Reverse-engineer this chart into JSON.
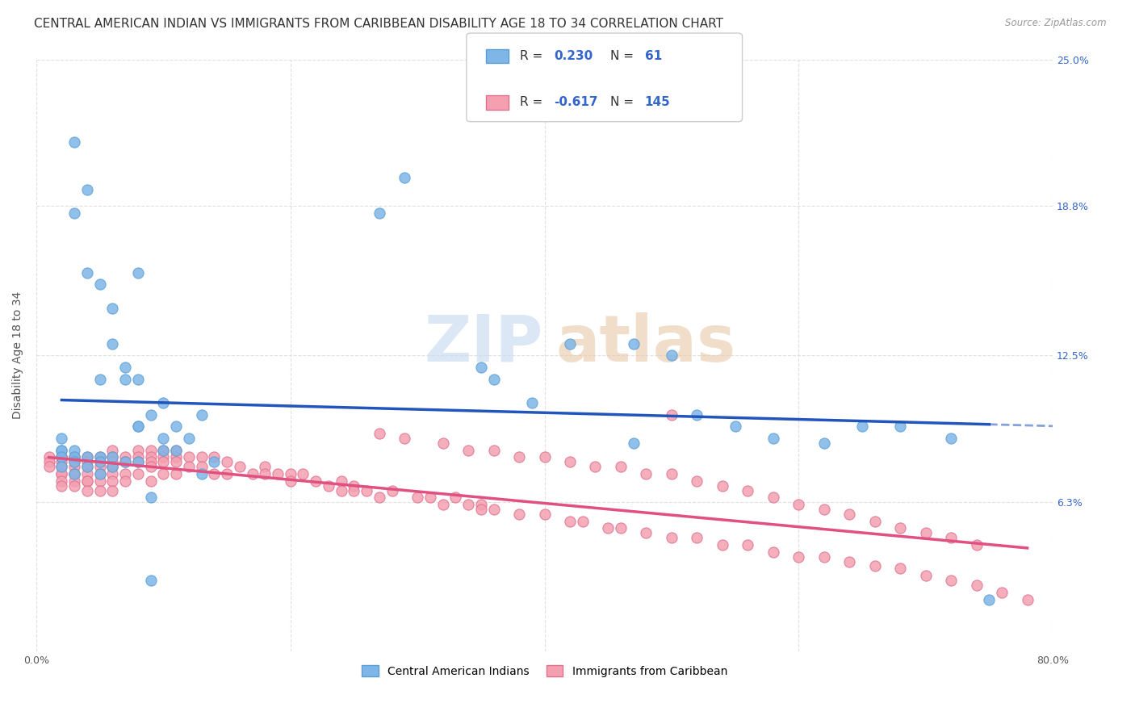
{
  "title": "CENTRAL AMERICAN INDIAN VS IMMIGRANTS FROM CARIBBEAN DISABILITY AGE 18 TO 34 CORRELATION CHART",
  "source": "Source: ZipAtlas.com",
  "ylabel": "Disability Age 18 to 34",
  "xlim": [
    0.0,
    0.8
  ],
  "ylim": [
    0.0,
    0.25
  ],
  "ytick_positions": [
    0.063,
    0.125,
    0.188,
    0.25
  ],
  "ytick_labels": [
    "6.3%",
    "12.5%",
    "18.8%",
    "25.0%"
  ],
  "series1_color": "#7EB6E8",
  "series1_edge": "#5A9FD4",
  "series2_color": "#F4A0B0",
  "series2_edge": "#E07090",
  "line1_color": "#2255BB",
  "line2_color": "#E05080",
  "legend_color": "#3366CC",
  "background_color": "#FFFFFF",
  "grid_color": "#DDDDDD",
  "title_fontsize": 11,
  "axis_label_fontsize": 10,
  "tick_fontsize": 9,
  "series1_x": [
    0.02,
    0.05,
    0.08,
    0.09,
    0.1,
    0.11,
    0.13,
    0.14,
    0.03,
    0.03,
    0.04,
    0.04,
    0.05,
    0.06,
    0.06,
    0.07,
    0.07,
    0.08,
    0.08,
    0.08,
    0.09,
    0.1,
    0.1,
    0.11,
    0.12,
    0.13,
    0.02,
    0.02,
    0.02,
    0.02,
    0.03,
    0.03,
    0.03,
    0.03,
    0.04,
    0.04,
    0.05,
    0.05,
    0.05,
    0.06,
    0.06,
    0.07,
    0.08,
    0.09,
    0.27,
    0.29,
    0.35,
    0.36,
    0.39,
    0.42,
    0.47,
    0.47,
    0.5,
    0.52,
    0.55,
    0.58,
    0.62,
    0.65,
    0.68,
    0.72,
    0.75
  ],
  "series1_y": [
    0.085,
    0.115,
    0.095,
    0.065,
    0.105,
    0.095,
    0.075,
    0.08,
    0.215,
    0.185,
    0.195,
    0.16,
    0.155,
    0.145,
    0.13,
    0.12,
    0.115,
    0.16,
    0.115,
    0.095,
    0.1,
    0.09,
    0.085,
    0.085,
    0.09,
    0.1,
    0.09,
    0.085,
    0.082,
    0.078,
    0.085,
    0.082,
    0.08,
    0.075,
    0.082,
    0.078,
    0.082,
    0.08,
    0.075,
    0.082,
    0.078,
    0.08,
    0.08,
    0.03,
    0.185,
    0.2,
    0.12,
    0.115,
    0.105,
    0.13,
    0.13,
    0.088,
    0.125,
    0.1,
    0.095,
    0.09,
    0.088,
    0.095,
    0.095,
    0.09,
    0.022
  ],
  "series2_x": [
    0.01,
    0.01,
    0.01,
    0.02,
    0.02,
    0.02,
    0.02,
    0.02,
    0.02,
    0.02,
    0.02,
    0.03,
    0.03,
    0.03,
    0.03,
    0.03,
    0.03,
    0.03,
    0.03,
    0.04,
    0.04,
    0.04,
    0.04,
    0.04,
    0.04,
    0.04,
    0.05,
    0.05,
    0.05,
    0.05,
    0.05,
    0.05,
    0.06,
    0.06,
    0.06,
    0.06,
    0.06,
    0.06,
    0.06,
    0.06,
    0.07,
    0.07,
    0.07,
    0.07,
    0.08,
    0.08,
    0.08,
    0.08,
    0.09,
    0.09,
    0.09,
    0.09,
    0.09,
    0.1,
    0.1,
    0.1,
    0.1,
    0.11,
    0.11,
    0.11,
    0.11,
    0.12,
    0.12,
    0.13,
    0.13,
    0.14,
    0.14,
    0.15,
    0.15,
    0.16,
    0.17,
    0.18,
    0.18,
    0.19,
    0.2,
    0.2,
    0.21,
    0.22,
    0.23,
    0.24,
    0.24,
    0.25,
    0.25,
    0.26,
    0.27,
    0.28,
    0.3,
    0.31,
    0.32,
    0.33,
    0.34,
    0.35,
    0.35,
    0.36,
    0.38,
    0.4,
    0.42,
    0.43,
    0.45,
    0.46,
    0.48,
    0.5,
    0.52,
    0.54,
    0.56,
    0.58,
    0.6,
    0.62,
    0.64,
    0.66,
    0.68,
    0.7,
    0.72,
    0.74,
    0.76,
    0.78,
    0.5,
    0.27,
    0.29,
    0.32,
    0.34,
    0.36,
    0.38,
    0.4,
    0.42,
    0.44,
    0.46,
    0.48,
    0.5,
    0.52,
    0.54,
    0.56,
    0.58,
    0.6,
    0.62,
    0.64,
    0.66,
    0.68,
    0.7,
    0.72,
    0.74
  ],
  "series2_y": [
    0.082,
    0.08,
    0.078,
    0.082,
    0.082,
    0.08,
    0.078,
    0.075,
    0.075,
    0.072,
    0.07,
    0.082,
    0.082,
    0.08,
    0.078,
    0.075,
    0.075,
    0.072,
    0.07,
    0.082,
    0.08,
    0.078,
    0.075,
    0.072,
    0.072,
    0.068,
    0.082,
    0.08,
    0.078,
    0.075,
    0.072,
    0.068,
    0.085,
    0.082,
    0.08,
    0.078,
    0.078,
    0.075,
    0.072,
    0.068,
    0.082,
    0.08,
    0.075,
    0.072,
    0.085,
    0.082,
    0.08,
    0.075,
    0.085,
    0.082,
    0.08,
    0.078,
    0.072,
    0.085,
    0.082,
    0.08,
    0.075,
    0.085,
    0.082,
    0.08,
    0.075,
    0.082,
    0.078,
    0.082,
    0.078,
    0.082,
    0.075,
    0.08,
    0.075,
    0.078,
    0.075,
    0.078,
    0.075,
    0.075,
    0.075,
    0.072,
    0.075,
    0.072,
    0.07,
    0.072,
    0.068,
    0.07,
    0.068,
    0.068,
    0.065,
    0.068,
    0.065,
    0.065,
    0.062,
    0.065,
    0.062,
    0.062,
    0.06,
    0.06,
    0.058,
    0.058,
    0.055,
    0.055,
    0.052,
    0.052,
    0.05,
    0.048,
    0.048,
    0.045,
    0.045,
    0.042,
    0.04,
    0.04,
    0.038,
    0.036,
    0.035,
    0.032,
    0.03,
    0.028,
    0.025,
    0.022,
    0.1,
    0.092,
    0.09,
    0.088,
    0.085,
    0.085,
    0.082,
    0.082,
    0.08,
    0.078,
    0.078,
    0.075,
    0.075,
    0.072,
    0.07,
    0.068,
    0.065,
    0.062,
    0.06,
    0.058,
    0.055,
    0.052,
    0.05,
    0.048,
    0.045
  ]
}
